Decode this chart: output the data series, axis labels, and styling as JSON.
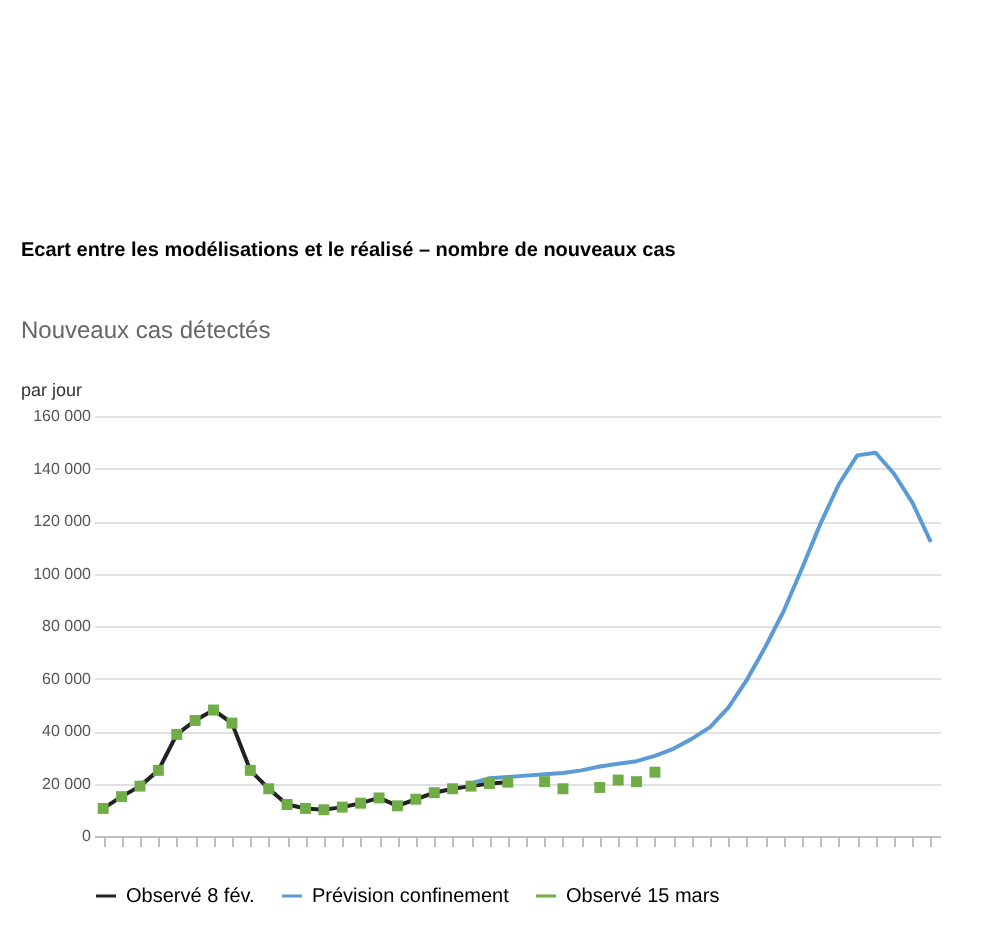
{
  "chart_data": {
    "type": "line",
    "title": "Ecart entre les modélisations et le réalisé – nombre de nouveaux cas",
    "subtitle": "Nouveaux cas détectés",
    "ylabel": "par jour",
    "categories": [
      null,
      null,
      null,
      null,
      null,
      null,
      null,
      null,
      null,
      null,
      null,
      null,
      null,
      null,
      null,
      null,
      null,
      null,
      null,
      null,
      null,
      null,
      null,
      null,
      null,
      null,
      null,
      null,
      null,
      null,
      null,
      null,
      null,
      null,
      null,
      null,
      null,
      null,
      null,
      null,
      null,
      null,
      null,
      null,
      null,
      null
    ],
    "series": [
      {
        "name": "Observé 8 fév.",
        "color": "#222222",
        "type": "line",
        "line_style": "solid",
        "values": [
          10500,
          15000,
          19000,
          25000,
          38700,
          44000,
          48000,
          43000,
          25000,
          18000,
          12000,
          10500,
          10000,
          11000,
          12500,
          14500,
          11500,
          14000,
          16500,
          18000,
          19000,
          20000,
          20500,
          null,
          null,
          null,
          null,
          null,
          null,
          null,
          null,
          null,
          null,
          null,
          null,
          null,
          null,
          null,
          null,
          null,
          null,
          null,
          null,
          null,
          null,
          null
        ]
      },
      {
        "name": "Prévision confinement",
        "color": "#5b9bd5",
        "type": "line",
        "line_style": "solid",
        "values": [
          null,
          null,
          null,
          null,
          null,
          null,
          null,
          null,
          null,
          null,
          null,
          null,
          null,
          null,
          null,
          null,
          null,
          null,
          null,
          null,
          20000,
          22000,
          22500,
          23000,
          23500,
          24000,
          25000,
          26500,
          27500,
          28500,
          30500,
          33200,
          37000,
          41500,
          49000,
          59500,
          72000,
          85700,
          102000,
          119000,
          134000,
          145000,
          146000,
          138000,
          127000,
          112000
        ]
      },
      {
        "name": "Observé 15 mars",
        "color": "#70ad47",
        "type": "scatter",
        "marker": "square",
        "values": [
          10500,
          15000,
          19000,
          25000,
          38700,
          44000,
          48000,
          43000,
          25000,
          18000,
          12000,
          10500,
          10000,
          11000,
          12500,
          14500,
          11500,
          14000,
          16500,
          18000,
          19000,
          20000,
          20500,
          null,
          20700,
          18000,
          null,
          18500,
          21300,
          20700,
          24300,
          null,
          null,
          null,
          null,
          null,
          null,
          null,
          null,
          null,
          null,
          null,
          null,
          null,
          null,
          null
        ]
      }
    ],
    "ylim": [
      0,
      160000
    ],
    "yticks": [
      0,
      {
        "value": 20000,
        "label": "20 000"
      },
      {
        "value": 40000,
        "label": "40 000"
      },
      {
        "value": 60000,
        "label": "60 000"
      },
      {
        "value": 80000,
        "label": "80 000"
      },
      {
        "value": 100000,
        "label": "100 000"
      },
      {
        "value": 120000,
        "label": "120 000"
      },
      {
        "value": 140000,
        "label": "140 000"
      },
      {
        "value": 160000,
        "label": "160 000"
      }
    ],
    "grid": "y",
    "legend": "bottom",
    "tick_labels": "y"
  }
}
